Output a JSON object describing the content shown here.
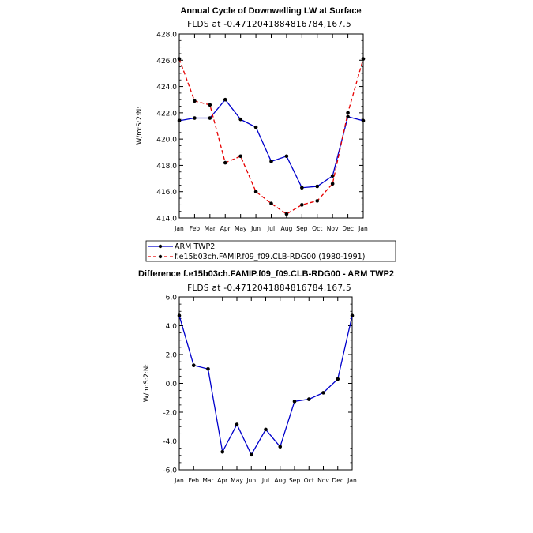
{
  "chart_data": [
    {
      "type": "line",
      "title": "Annual Cycle of Downwelling LW at Surface",
      "subtitle": "FLDS at -0.4712041884816784,167.5",
      "ylabel": "W/m:S:2:N:",
      "ylim": [
        414.0,
        428.0
      ],
      "yticks": [
        "414.0",
        "416.0",
        "418.0",
        "420.0",
        "422.0",
        "424.0",
        "426.0",
        "428.0"
      ],
      "categories": [
        "Jan",
        "Feb",
        "Mar",
        "Apr",
        "May",
        "Jun",
        "Jul",
        "Aug",
        "Sep",
        "Oct",
        "Nov",
        "Dec",
        "Jan"
      ],
      "series": [
        {
          "name": "ARM TWP2",
          "color": "#0000cc",
          "dash": "solid",
          "values": [
            421.4,
            421.6,
            421.6,
            423.0,
            421.5,
            420.9,
            418.3,
            418.7,
            416.3,
            416.4,
            417.2,
            421.7,
            421.4
          ]
        },
        {
          "name": "f.e15b03ch.FAMIP.f09_f09.CLB-RDG00 (1980-1991)",
          "color": "#e60000",
          "dash": "dashed",
          "values": [
            426.1,
            422.9,
            422.6,
            418.2,
            418.7,
            416.0,
            415.1,
            414.3,
            415.0,
            415.3,
            416.6,
            422.0,
            426.1
          ]
        }
      ],
      "grid": false
    },
    {
      "type": "line",
      "title": "Difference f.e15b03ch.FAMIP.f09_f09.CLB-RDG00 - ARM TWP2",
      "subtitle": "FLDS at -0.4712041884816784,167.5",
      "ylabel": "W/m:S:2:N:",
      "ylim": [
        -6.0,
        6.0
      ],
      "yticks": [
        "-6.0",
        "-4.0",
        "-2.0",
        "0.0",
        "2.0",
        "4.0",
        "6.0"
      ],
      "categories": [
        "Jan",
        "Feb",
        "Mar",
        "Apr",
        "May",
        "Jun",
        "Jul",
        "Aug",
        "Sep",
        "Oct",
        "Nov",
        "Dec",
        "Jan"
      ],
      "series": [
        {
          "color": "#0000cc",
          "dash": "solid",
          "values": [
            4.7,
            1.25,
            1.0,
            -4.75,
            -2.85,
            -4.95,
            -3.2,
            -4.4,
            -1.25,
            -1.1,
            -0.65,
            0.3,
            4.7
          ]
        }
      ],
      "grid": false
    }
  ]
}
